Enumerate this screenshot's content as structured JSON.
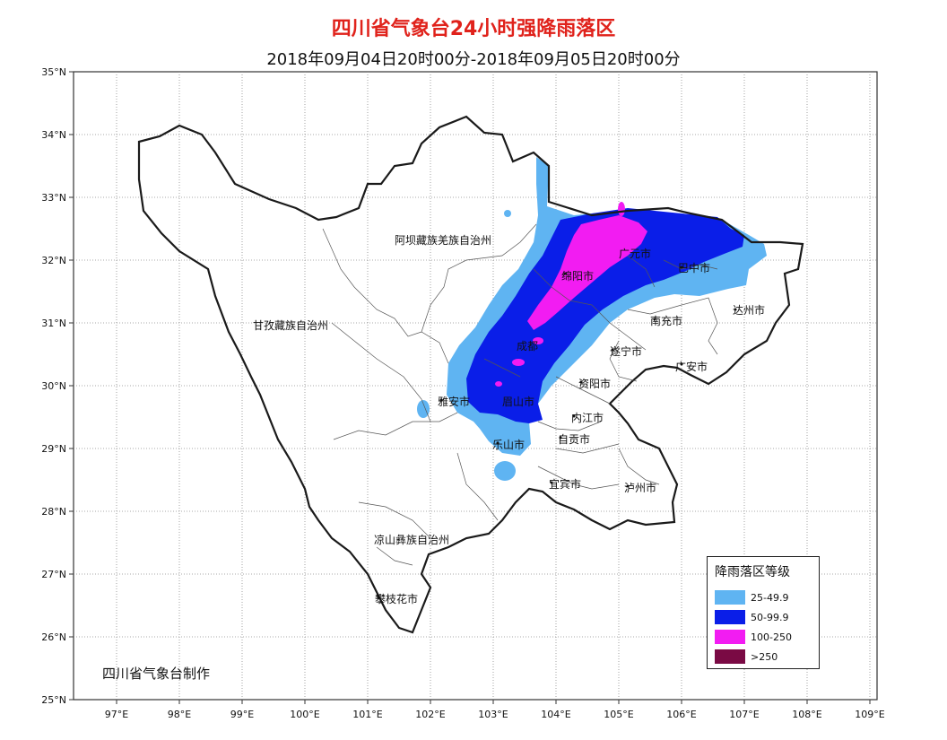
{
  "title": "四川省气象台24小时强降雨落区",
  "subtitle": "2018年09月04日20时00分-2018年09月05日20时00分",
  "credit": "四川省气象台制作",
  "axes": {
    "lat_labels": [
      "35°N",
      "34°N",
      "33°N",
      "32°N",
      "31°N",
      "30°N",
      "29°N",
      "28°N",
      "27°N",
      "26°N",
      "25°N"
    ],
    "lon_labels": [
      "97°E",
      "98°E",
      "99°E",
      "100°E",
      "101°E",
      "102°E",
      "103°E",
      "104°E",
      "105°E",
      "106°E",
      "107°E",
      "108°E",
      "109°E"
    ]
  },
  "places": {
    "aba": "阿坝藏族羌族自治州",
    "ganzi": "甘孜藏族自治州",
    "liangshan": "凉山彝族自治州",
    "panzhihua": "攀枝花市",
    "yaan": "雅安市",
    "leshan": "乐山市",
    "mianyang": "绵阳市",
    "guangyuan": "广元市",
    "bazhong": "巴中市",
    "dazhou": "达州市",
    "nanchong": "南充市",
    "suining": "遂宁市",
    "guangan": "广安市",
    "ziyang": "资阳市",
    "neijiang": "内江市",
    "zigong": "自贡市",
    "yibin": "宜宾市",
    "luzhou": "泸州市",
    "chengdu": "成都",
    "meishan": "眉山市"
  },
  "legend": {
    "title": "降雨落区等级",
    "items": [
      {
        "label": "25-49.9",
        "color": "#5fb4f2"
      },
      {
        "label": "50-99.9",
        "color": "#0a1ee8"
      },
      {
        "label": "100-250",
        "color": "#f21cf2"
      },
      {
        "label": ">250",
        "color": "#7a0a44"
      }
    ]
  },
  "colors": {
    "title": "#e0221b",
    "light_blue": "#5fb4f2",
    "blue": "#0a1ee8",
    "magenta": "#f21cf2",
    "dark_maroon": "#7a0a44",
    "border": "#1a1a1a",
    "grid": "#8c8c8c"
  }
}
